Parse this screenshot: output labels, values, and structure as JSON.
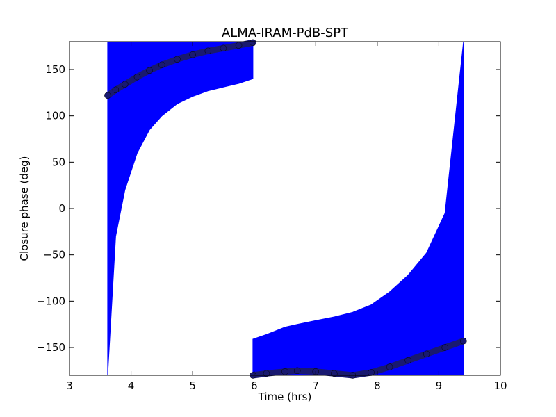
{
  "chart_data": {
    "type": "scatter",
    "title": "ALMA-IRAM-PdB-SPT",
    "xlabel": "Time (hrs)",
    "ylabel": "Closure phase (deg)",
    "xlim": [
      3,
      10
    ],
    "ylim": [
      -180,
      180
    ],
    "x_ticks": [
      "3",
      "4",
      "5",
      "6",
      "7",
      "8",
      "9",
      "10"
    ],
    "y_ticks": [
      "−150",
      "−100",
      "−50",
      "0",
      "50",
      "100",
      "150"
    ],
    "grid": false,
    "legend": "none",
    "colors": {
      "errorbar": "#0000ff",
      "points": "#191970"
    },
    "series": [
      {
        "segment": 1,
        "x": [
          3.62,
          3.75,
          3.9,
          4.1,
          4.3,
          4.5,
          4.75,
          5.0,
          5.25,
          5.5,
          5.75,
          5.98
        ],
        "y": [
          122,
          128,
          134,
          142,
          149,
          155,
          161,
          166,
          170,
          173,
          176,
          179
        ],
        "err_lower": [
          -180,
          -30,
          20,
          60,
          85,
          100,
          113,
          121,
          127,
          131,
          135,
          140
        ],
        "err_upper": [
          180,
          180,
          180,
          180,
          180,
          180,
          180,
          180,
          180,
          180,
          180,
          180
        ]
      },
      {
        "segment": 2,
        "x": [
          5.98,
          6.2,
          6.5,
          6.7,
          7.0,
          7.3,
          7.6,
          7.9,
          8.2,
          8.5,
          8.8,
          9.1,
          9.4
        ],
        "y": [
          -180,
          -178,
          -176,
          -175,
          -176,
          -178,
          -180,
          -177,
          -171,
          -164,
          -157,
          -150,
          -143
        ],
        "err_lower": [
          -180,
          -180,
          -180,
          -180,
          -180,
          -180,
          -180,
          -180,
          -180,
          -180,
          -180,
          -180,
          -180
        ],
        "err_upper": [
          -141,
          -136,
          -128,
          -125,
          -121,
          -117,
          -112,
          -104,
          -90,
          -72,
          -48,
          -5,
          180
        ]
      }
    ]
  }
}
